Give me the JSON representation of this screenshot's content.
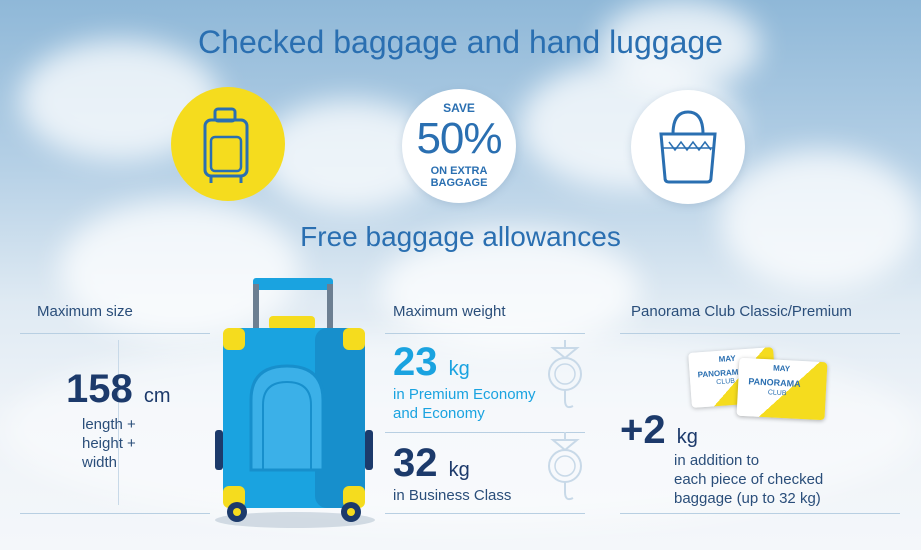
{
  "header": {
    "title": "Checked baggage and hand luggage"
  },
  "promo": {
    "save_top": "SAVE",
    "save_value": "50%",
    "save_bottom_1": "ON EXTRA",
    "save_bottom_2": "BAGGAGE"
  },
  "section": {
    "subtitle": "Free baggage allowances"
  },
  "size": {
    "label": "Maximum size",
    "value": "158",
    "unit": "cm",
    "desc_1": "length +",
    "desc_2": "height +",
    "desc_3": "width"
  },
  "weight": {
    "label": "Maximum weight",
    "economy_value": "23",
    "economy_unit": "kg",
    "economy_desc_1": "in Premium Economy",
    "economy_desc_2": "and Economy",
    "business_value": "32",
    "business_unit": "kg",
    "business_desc": "in Business Class"
  },
  "club": {
    "label": "Panorama Club Classic/Premium",
    "value": "+2",
    "unit": "kg",
    "desc_1": "in addition to",
    "desc_2": "each piece of checked",
    "desc_3": "baggage (up to 32 kg)",
    "card_brand": "MAY",
    "card_name": "PANORAMA",
    "card_sub": "CLUB"
  },
  "colors": {
    "accent_blue": "#2a6fb1",
    "cyan": "#1aa3e0",
    "navy": "#1c3a6b",
    "yellow": "#f5dc1e"
  }
}
